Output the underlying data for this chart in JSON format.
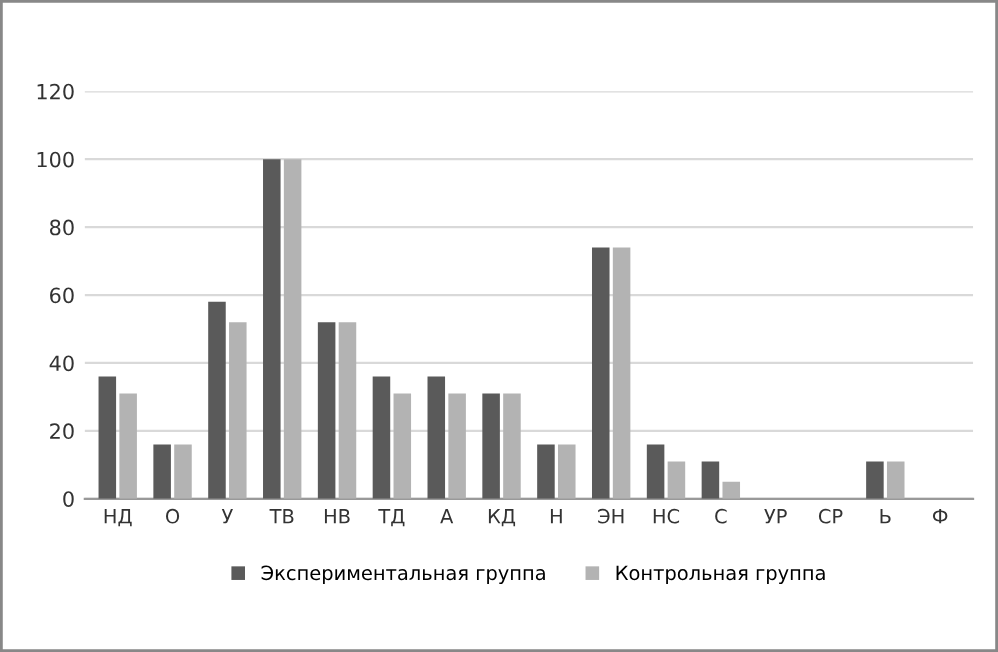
{
  "chart_data": {
    "type": "bar",
    "categories": [
      "НД",
      "О",
      "У",
      "ТВ",
      "НВ",
      "ТД",
      "А",
      "КД",
      "Н",
      "ЭН",
      "НС",
      "С",
      "УР",
      "СР",
      "Ь",
      "Ф"
    ],
    "series": [
      {
        "name": "Экспериментальная группа",
        "color": "#5a5a5a",
        "values": [
          36,
          16,
          58,
          100,
          52,
          36,
          36,
          31,
          16,
          74,
          16,
          11,
          0,
          0,
          11,
          0
        ]
      },
      {
        "name": "Контрольная группа",
        "color": "#b3b3b3",
        "values": [
          31,
          16,
          52,
          100,
          52,
          31,
          31,
          31,
          16,
          74,
          11,
          5,
          0,
          0,
          11,
          0
        ]
      }
    ],
    "ylim": [
      0,
      120
    ],
    "yticks": [
      0,
      20,
      40,
      60,
      80,
      100,
      120
    ],
    "grid": "y",
    "legend": "bottom"
  }
}
